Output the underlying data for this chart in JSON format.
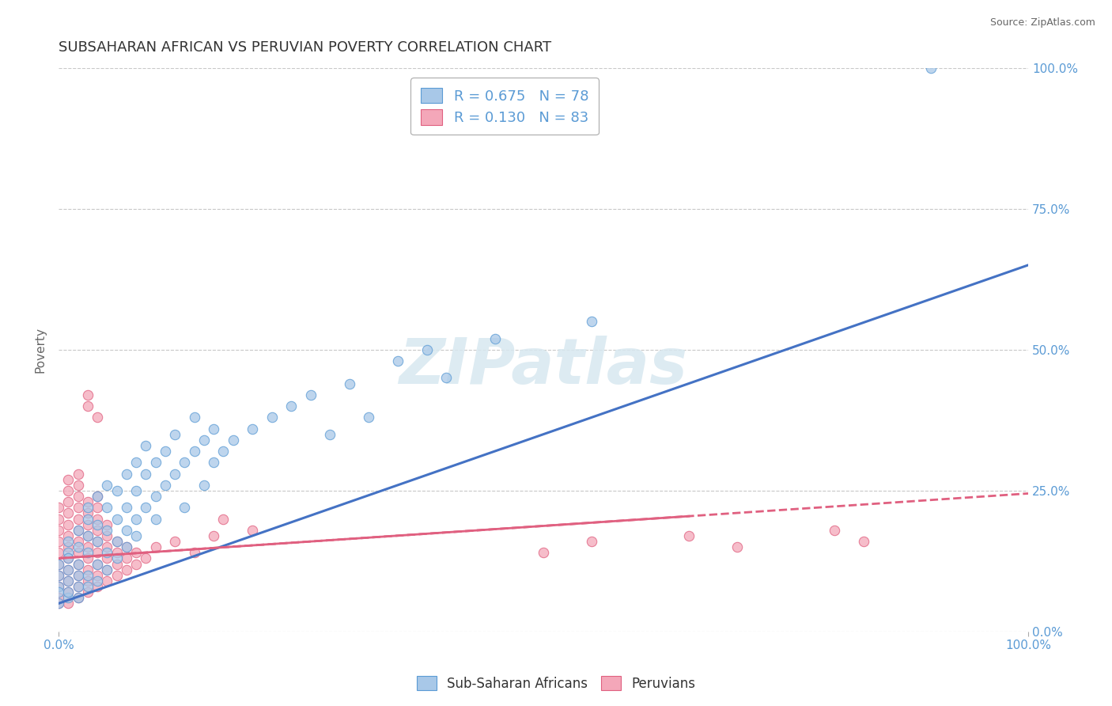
{
  "title": "SUBSAHARAN AFRICAN VS PERUVIAN POVERTY CORRELATION CHART",
  "source": "Source: ZipAtlas.com",
  "ylabel": "Poverty",
  "xlim": [
    0,
    1
  ],
  "ylim": [
    0,
    1
  ],
  "ytick_labels": [
    "0.0%",
    "25.0%",
    "50.0%",
    "75.0%",
    "100.0%"
  ],
  "ytick_values": [
    0.0,
    0.25,
    0.5,
    0.75,
    1.0
  ],
  "blue_color": "#a8c8e8",
  "blue_edge_color": "#5b9bd5",
  "pink_color": "#f4a7b9",
  "pink_edge_color": "#e06080",
  "blue_line_color": "#4472c4",
  "pink_line_color": "#e06080",
  "watermark": "ZIPatlas",
  "blue_intercept": 0.05,
  "blue_slope": 0.6,
  "pink_intercept": 0.13,
  "pink_slope": 0.115,
  "background_color": "#ffffff",
  "grid_color": "#c8c8c8",
  "title_fontsize": 13,
  "axis_label_color": "#5b9bd5",
  "blue_scatter": [
    [
      0.0,
      0.05
    ],
    [
      0.0,
      0.08
    ],
    [
      0.0,
      0.1
    ],
    [
      0.0,
      0.12
    ],
    [
      0.0,
      0.07
    ],
    [
      0.01,
      0.06
    ],
    [
      0.01,
      0.09
    ],
    [
      0.01,
      0.11
    ],
    [
      0.01,
      0.14
    ],
    [
      0.01,
      0.07
    ],
    [
      0.01,
      0.13
    ],
    [
      0.01,
      0.16
    ],
    [
      0.02,
      0.08
    ],
    [
      0.02,
      0.12
    ],
    [
      0.02,
      0.15
    ],
    [
      0.02,
      0.18
    ],
    [
      0.02,
      0.1
    ],
    [
      0.02,
      0.06
    ],
    [
      0.03,
      0.1
    ],
    [
      0.03,
      0.14
    ],
    [
      0.03,
      0.17
    ],
    [
      0.03,
      0.2
    ],
    [
      0.03,
      0.08
    ],
    [
      0.03,
      0.22
    ],
    [
      0.04,
      0.12
    ],
    [
      0.04,
      0.16
    ],
    [
      0.04,
      0.19
    ],
    [
      0.04,
      0.09
    ],
    [
      0.04,
      0.24
    ],
    [
      0.05,
      0.14
    ],
    [
      0.05,
      0.18
    ],
    [
      0.05,
      0.22
    ],
    [
      0.05,
      0.11
    ],
    [
      0.05,
      0.26
    ],
    [
      0.06,
      0.16
    ],
    [
      0.06,
      0.2
    ],
    [
      0.06,
      0.25
    ],
    [
      0.06,
      0.13
    ],
    [
      0.07,
      0.18
    ],
    [
      0.07,
      0.22
    ],
    [
      0.07,
      0.28
    ],
    [
      0.07,
      0.15
    ],
    [
      0.08,
      0.2
    ],
    [
      0.08,
      0.25
    ],
    [
      0.08,
      0.3
    ],
    [
      0.08,
      0.17
    ],
    [
      0.09,
      0.22
    ],
    [
      0.09,
      0.28
    ],
    [
      0.09,
      0.33
    ],
    [
      0.1,
      0.24
    ],
    [
      0.1,
      0.3
    ],
    [
      0.1,
      0.2
    ],
    [
      0.11,
      0.26
    ],
    [
      0.11,
      0.32
    ],
    [
      0.12,
      0.28
    ],
    [
      0.12,
      0.35
    ],
    [
      0.13,
      0.3
    ],
    [
      0.13,
      0.22
    ],
    [
      0.14,
      0.32
    ],
    [
      0.14,
      0.38
    ],
    [
      0.15,
      0.34
    ],
    [
      0.15,
      0.26
    ],
    [
      0.16,
      0.36
    ],
    [
      0.16,
      0.3
    ],
    [
      0.17,
      0.32
    ],
    [
      0.18,
      0.34
    ],
    [
      0.2,
      0.36
    ],
    [
      0.22,
      0.38
    ],
    [
      0.24,
      0.4
    ],
    [
      0.26,
      0.42
    ],
    [
      0.28,
      0.35
    ],
    [
      0.3,
      0.44
    ],
    [
      0.32,
      0.38
    ],
    [
      0.35,
      0.48
    ],
    [
      0.38,
      0.5
    ],
    [
      0.4,
      0.45
    ],
    [
      0.45,
      0.52
    ],
    [
      0.55,
      0.55
    ],
    [
      0.9,
      1.0
    ]
  ],
  "pink_scatter": [
    [
      0.0,
      0.05
    ],
    [
      0.0,
      0.08
    ],
    [
      0.0,
      0.1
    ],
    [
      0.0,
      0.12
    ],
    [
      0.0,
      0.14
    ],
    [
      0.0,
      0.16
    ],
    [
      0.0,
      0.18
    ],
    [
      0.0,
      0.2
    ],
    [
      0.0,
      0.06
    ],
    [
      0.0,
      0.22
    ],
    [
      0.01,
      0.05
    ],
    [
      0.01,
      0.07
    ],
    [
      0.01,
      0.09
    ],
    [
      0.01,
      0.11
    ],
    [
      0.01,
      0.13
    ],
    [
      0.01,
      0.15
    ],
    [
      0.01,
      0.17
    ],
    [
      0.01,
      0.19
    ],
    [
      0.01,
      0.21
    ],
    [
      0.01,
      0.23
    ],
    [
      0.01,
      0.25
    ],
    [
      0.01,
      0.27
    ],
    [
      0.02,
      0.06
    ],
    [
      0.02,
      0.08
    ],
    [
      0.02,
      0.1
    ],
    [
      0.02,
      0.12
    ],
    [
      0.02,
      0.14
    ],
    [
      0.02,
      0.16
    ],
    [
      0.02,
      0.18
    ],
    [
      0.02,
      0.2
    ],
    [
      0.02,
      0.22
    ],
    [
      0.02,
      0.24
    ],
    [
      0.02,
      0.26
    ],
    [
      0.02,
      0.28
    ],
    [
      0.03,
      0.07
    ],
    [
      0.03,
      0.09
    ],
    [
      0.03,
      0.11
    ],
    [
      0.03,
      0.13
    ],
    [
      0.03,
      0.15
    ],
    [
      0.03,
      0.17
    ],
    [
      0.03,
      0.19
    ],
    [
      0.03,
      0.21
    ],
    [
      0.03,
      0.23
    ],
    [
      0.03,
      0.4
    ],
    [
      0.03,
      0.42
    ],
    [
      0.04,
      0.08
    ],
    [
      0.04,
      0.1
    ],
    [
      0.04,
      0.12
    ],
    [
      0.04,
      0.14
    ],
    [
      0.04,
      0.16
    ],
    [
      0.04,
      0.18
    ],
    [
      0.04,
      0.2
    ],
    [
      0.04,
      0.22
    ],
    [
      0.04,
      0.24
    ],
    [
      0.04,
      0.38
    ],
    [
      0.05,
      0.09
    ],
    [
      0.05,
      0.11
    ],
    [
      0.05,
      0.13
    ],
    [
      0.05,
      0.15
    ],
    [
      0.05,
      0.17
    ],
    [
      0.05,
      0.19
    ],
    [
      0.06,
      0.1
    ],
    [
      0.06,
      0.12
    ],
    [
      0.06,
      0.14
    ],
    [
      0.06,
      0.16
    ],
    [
      0.07,
      0.11
    ],
    [
      0.07,
      0.13
    ],
    [
      0.07,
      0.15
    ],
    [
      0.08,
      0.12
    ],
    [
      0.08,
      0.14
    ],
    [
      0.09,
      0.13
    ],
    [
      0.1,
      0.15
    ],
    [
      0.12,
      0.16
    ],
    [
      0.14,
      0.14
    ],
    [
      0.16,
      0.17
    ],
    [
      0.17,
      0.2
    ],
    [
      0.2,
      0.18
    ],
    [
      0.5,
      0.14
    ],
    [
      0.55,
      0.16
    ],
    [
      0.65,
      0.17
    ],
    [
      0.7,
      0.15
    ],
    [
      0.8,
      0.18
    ],
    [
      0.83,
      0.16
    ]
  ]
}
